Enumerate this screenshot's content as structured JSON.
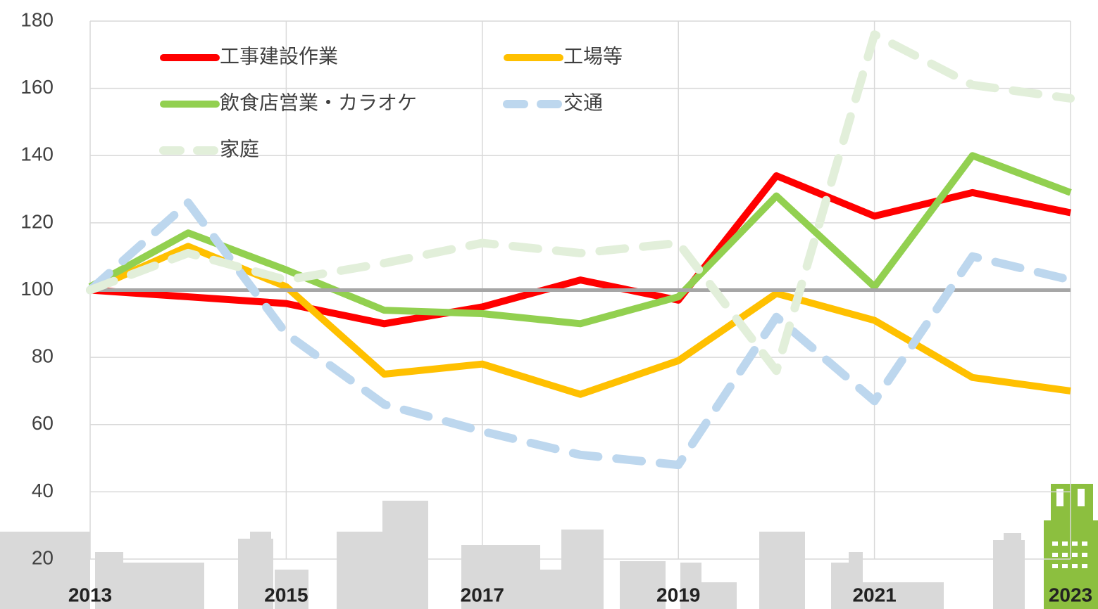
{
  "chart_data": {
    "type": "line",
    "x": [
      2013,
      2014,
      2015,
      2016,
      2017,
      2018,
      2019,
      2020,
      2021,
      2022,
      2023
    ],
    "xlim": [
      2013,
      2023
    ],
    "xticks": [
      2013,
      2015,
      2017,
      2019,
      2021,
      2023
    ],
    "ylim": [
      20,
      180
    ],
    "yticks": [
      20,
      40,
      60,
      80,
      100,
      120,
      140,
      160,
      180
    ],
    "grid": true,
    "reference_line": 100,
    "reference_color": "#a6a6a6",
    "series": [
      {
        "name": "工事建設作業",
        "color": "#ff0000",
        "style": "solid",
        "values": [
          100,
          98,
          96,
          90,
          95,
          103,
          97,
          134,
          122,
          129,
          123
        ]
      },
      {
        "name": "工場等",
        "color": "#ffc000",
        "style": "solid",
        "values": [
          100,
          113,
          101,
          75,
          78,
          69,
          79,
          99,
          91,
          74,
          70
        ]
      },
      {
        "name": "飲食店営業・カラオケ",
        "color": "#92d050",
        "style": "solid",
        "values": [
          101,
          117,
          106,
          94,
          93,
          90,
          98,
          128,
          101,
          140,
          129
        ]
      },
      {
        "name": "交通",
        "color": "#bdd7ee",
        "style": "dashed",
        "values": [
          100,
          126,
          87,
          66,
          58,
          51,
          48,
          92,
          67,
          110,
          103
        ]
      },
      {
        "name": "家庭",
        "color": "#e2efda",
        "style": "dashed",
        "values": [
          100,
          111,
          103,
          108,
          114,
          111,
          114,
          76,
          176,
          161,
          157
        ]
      }
    ]
  }
}
